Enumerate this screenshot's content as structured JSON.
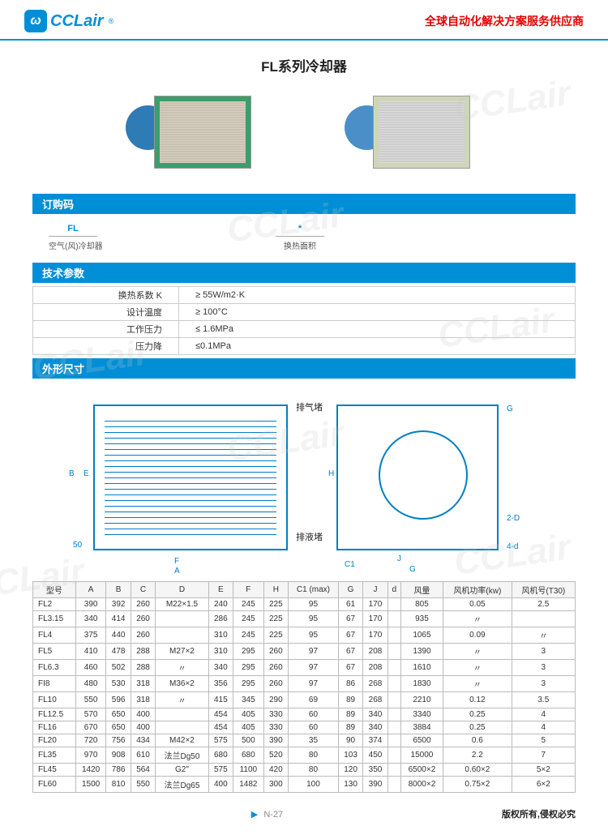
{
  "header": {
    "logo_text": "CCLair",
    "logo_r": "®",
    "slogan": "全球自动化解决方案服务供应商"
  },
  "page_title": "FL系列冷却器",
  "product_images": {
    "img1": {
      "fan_color": "#2e7bb5",
      "body_color": "#3a9e6d",
      "fin_color": "#d8d0c0"
    },
    "img2": {
      "fan_color": "#4a8fc8",
      "body_color": "#cfd6b8",
      "fin_color": "#dcdcdc"
    }
  },
  "sections": {
    "order_code": "订购码",
    "tech_params": "技术参数",
    "dimensions": "外形尺寸"
  },
  "order_code": {
    "items": [
      {
        "code": "FL",
        "desc": "空气(风)冷却器"
      },
      {
        "code": "*",
        "desc": "换热面积"
      }
    ]
  },
  "tech_params": [
    {
      "label": "换热系数 K",
      "value": "≥ 55W/m2·K"
    },
    {
      "label": "设计温度",
      "value": "≥ 100°C"
    },
    {
      "label": "工作压力",
      "value": "≤ 1.6MPa"
    },
    {
      "label": "压力降",
      "value": "≤0.1MPa"
    }
  ],
  "diagram_labels": {
    "exhaust_plug": "排气堵",
    "drain_plug": "排液堵",
    "A": "A",
    "B": "B",
    "C": "C",
    "D": "D",
    "E": "E",
    "F": "F",
    "G": "G",
    "H": "H",
    "J": "J",
    "C1": "C1",
    "_2D": "2-D",
    "_4d": "4-d",
    "_50": "50"
  },
  "dim_table": {
    "columns": [
      "型号",
      "A",
      "B",
      "C",
      "D",
      "E",
      "F",
      "H",
      "C1 (max)",
      "G",
      "J",
      "d",
      "风量",
      "风机功率(kw)",
      "风机号(T30)"
    ],
    "rows": [
      [
        "FL2",
        "390",
        "392",
        "260",
        "M22×1.5",
        "240",
        "245",
        "225",
        "95",
        "61",
        "170",
        "",
        "805",
        "0.05",
        "2.5"
      ],
      [
        "FL3.15",
        "340",
        "414",
        "260",
        "",
        "286",
        "245",
        "225",
        "95",
        "67",
        "170",
        "",
        "935",
        "〃",
        ""
      ],
      [
        "FL4",
        "375",
        "440",
        "260",
        "",
        "310",
        "245",
        "225",
        "95",
        "67",
        "170",
        "",
        "1065",
        "0.09",
        "〃"
      ],
      [
        "FL5",
        "410",
        "478",
        "288",
        "M27×2",
        "310",
        "295",
        "260",
        "97",
        "67",
        "208",
        "",
        "1390",
        "〃",
        "3"
      ],
      [
        "FL6.3",
        "460",
        "502",
        "288",
        "〃",
        "340",
        "295",
        "260",
        "97",
        "67",
        "208",
        "",
        "1610",
        "〃",
        "3"
      ],
      [
        "FI8",
        "480",
        "530",
        "318",
        "M36×2",
        "356",
        "295",
        "260",
        "97",
        "86",
        "268",
        "",
        "1830",
        "〃",
        "3"
      ],
      [
        "FL10",
        "550",
        "596",
        "318",
        "〃",
        "415",
        "345",
        "290",
        "69",
        "89",
        "268",
        "",
        "2210",
        "0.12",
        "3.5"
      ],
      [
        "FL12.5",
        "570",
        "650",
        "400",
        "",
        "454",
        "405",
        "330",
        "60",
        "89",
        "340",
        "",
        "3340",
        "0.25",
        "4"
      ],
      [
        "FL16",
        "670",
        "650",
        "400",
        "",
        "454",
        "405",
        "330",
        "60",
        "89",
        "340",
        "",
        "3884",
        "0.25",
        "4"
      ],
      [
        "FL20",
        "720",
        "756",
        "434",
        "M42×2",
        "575",
        "500",
        "390",
        "35",
        "90",
        "374",
        "",
        "6500",
        "0.6",
        "5"
      ],
      [
        "FL35",
        "970",
        "908",
        "610",
        "法兰Dg50",
        "680",
        "680",
        "520",
        "80",
        "103",
        "450",
        "",
        "15000",
        "2.2",
        "7"
      ],
      [
        "FL45",
        "1420",
        "786",
        "564",
        "G2\"",
        "575",
        "1100",
        "420",
        "80",
        "120",
        "350",
        "",
        "6500×2",
        "0.60×2",
        "5×2"
      ],
      [
        "FL60",
        "1500",
        "810",
        "550",
        "法兰Dg65",
        "400",
        "1482",
        "300",
        "100",
        "130",
        "390",
        "",
        "8000×2",
        "0.75×2",
        "6×2"
      ]
    ]
  },
  "footer": {
    "page_num": "N-27",
    "copyright": "版权所有,侵权必究"
  },
  "watermark": "CCLair",
  "colors": {
    "brand_blue": "#008fd6",
    "brand_red": "#e60000",
    "diagram_blue": "#007fc0"
  }
}
